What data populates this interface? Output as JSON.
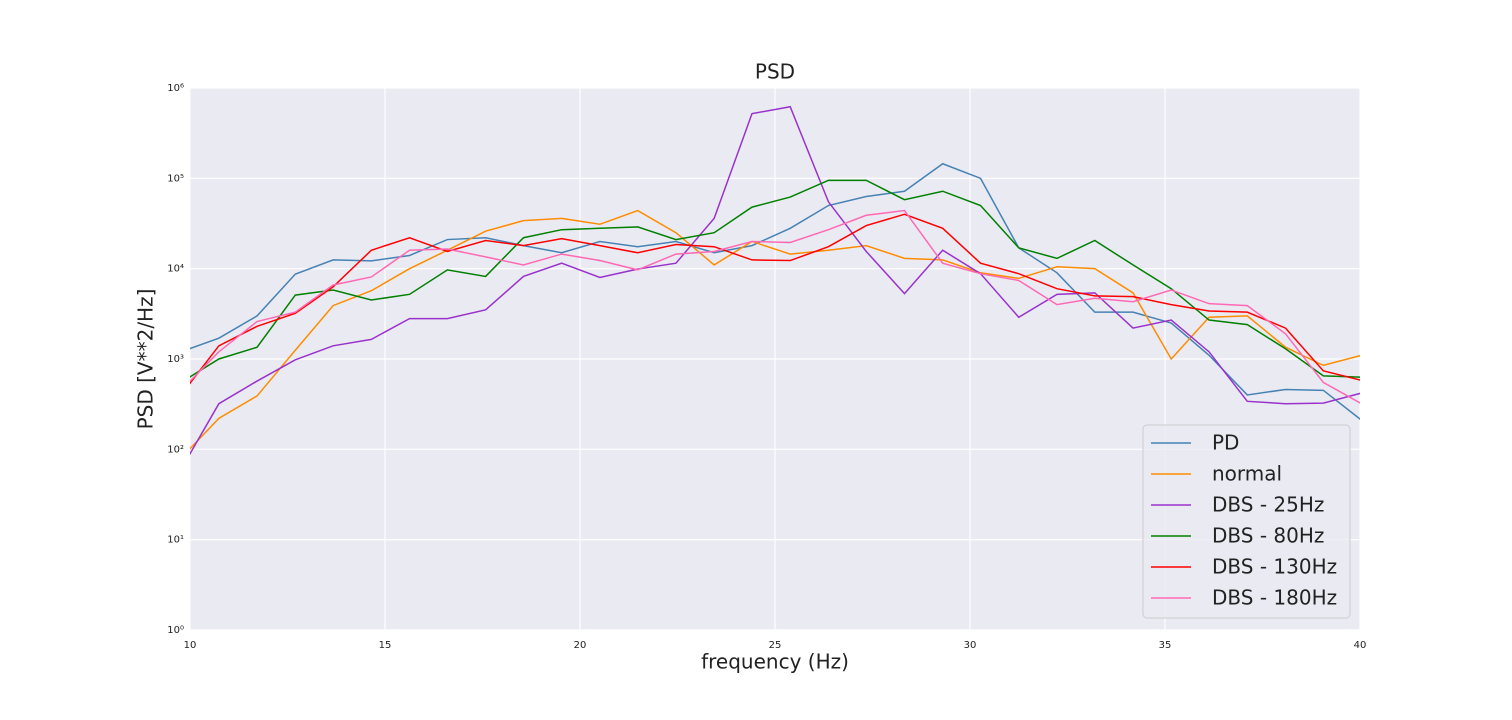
{
  "chart_data": {
    "type": "line",
    "title": "PSD",
    "xlabel": "frequency (Hz)",
    "ylabel": "PSD [V**2/Hz]",
    "log_y": true,
    "grid": true,
    "legend": "lower right",
    "xlim": [
      10,
      40
    ],
    "xticks": [
      10,
      15,
      20,
      25,
      30,
      35,
      40
    ],
    "ylim": [
      1,
      1000000
    ],
    "yticks": [
      {
        "value": 1,
        "label": "10⁰"
      },
      {
        "value": 10,
        "label": "10¹"
      },
      {
        "value": 100,
        "label": "10²"
      },
      {
        "value": 1000,
        "label": "10³"
      },
      {
        "value": 10000,
        "label": "10⁴"
      },
      {
        "value": 100000,
        "label": "10⁵"
      },
      {
        "value": 1000000,
        "label": "10⁶"
      }
    ],
    "x": [
      9.77,
      10.74,
      11.72,
      12.7,
      13.67,
      14.65,
      15.63,
      16.6,
      17.58,
      18.55,
      19.53,
      20.51,
      21.48,
      22.46,
      23.44,
      24.41,
      25.39,
      26.37,
      27.34,
      28.32,
      29.3,
      30.27,
      31.25,
      32.23,
      33.2,
      34.18,
      35.16,
      36.13,
      37.11,
      38.09,
      39.06,
      40.04
    ],
    "series": [
      {
        "name": "PD",
        "color": "#4682b4",
        "values": [
          1200,
          1700,
          3000,
          8700,
          12500,
          12200,
          14000,
          21000,
          22000,
          18000,
          15000,
          20000,
          17500,
          20000,
          15000,
          18000,
          28000,
          50000,
          63000,
          72000,
          145000,
          100000,
          17000,
          9000,
          3300,
          3300,
          2500,
          1100,
          400,
          460,
          450,
          210
        ]
      },
      {
        "name": "normal",
        "color": "#ff8c00",
        "values": [
          80,
          220,
          390,
          1250,
          3900,
          5700,
          10000,
          16000,
          26000,
          34000,
          36000,
          31000,
          44000,
          25000,
          11000,
          20000,
          14500,
          16000,
          18000,
          13000,
          12500,
          9000,
          7800,
          10500,
          10000,
          5400,
          1000,
          2900,
          3000,
          1350,
          850,
          1100
        ]
      },
      {
        "name": "DBS - 25Hz",
        "color": "#9932cc",
        "values": [
          60,
          320,
          570,
          980,
          1400,
          1650,
          2800,
          2800,
          3500,
          8200,
          11500,
          8000,
          9900,
          11500,
          36000,
          520000,
          620000,
          55000,
          15500,
          5300,
          16000,
          8800,
          2900,
          5200,
          5400,
          2200,
          2700,
          1200,
          340,
          320,
          325,
          420
        ]
      },
      {
        "name": "DBS - 80Hz",
        "color": "#008000",
        "values": [
          550,
          1000,
          1350,
          5100,
          5800,
          4500,
          5200,
          9700,
          8200,
          22000,
          27000,
          28000,
          29000,
          21000,
          25000,
          48000,
          62000,
          95000,
          95000,
          58000,
          72000,
          50000,
          17000,
          13000,
          20500,
          11000,
          6000,
          2700,
          2400,
          1300,
          650,
          630
        ]
      },
      {
        "name": "DBS - 130Hz",
        "color": "#ff0000",
        "values": [
          400,
          1400,
          2300,
          3200,
          6300,
          16000,
          22000,
          15500,
          20500,
          18000,
          21500,
          18000,
          15000,
          18500,
          17500,
          12500,
          12300,
          17500,
          30000,
          40000,
          28000,
          11500,
          8800,
          6000,
          5000,
          4900,
          4000,
          3400,
          3300,
          2200,
          740,
          580
        ]
      },
      {
        "name": "DBS - 180Hz",
        "color": "#ff69b4",
        "values": [
          450,
          1200,
          2600,
          3300,
          6600,
          8100,
          16000,
          16500,
          13500,
          11000,
          14500,
          12300,
          9700,
          14500,
          15500,
          20000,
          19500,
          27000,
          39000,
          44000,
          11500,
          8800,
          7400,
          4000,
          4700,
          4300,
          5800,
          4100,
          3900,
          1900,
          550,
          320
        ]
      }
    ]
  }
}
